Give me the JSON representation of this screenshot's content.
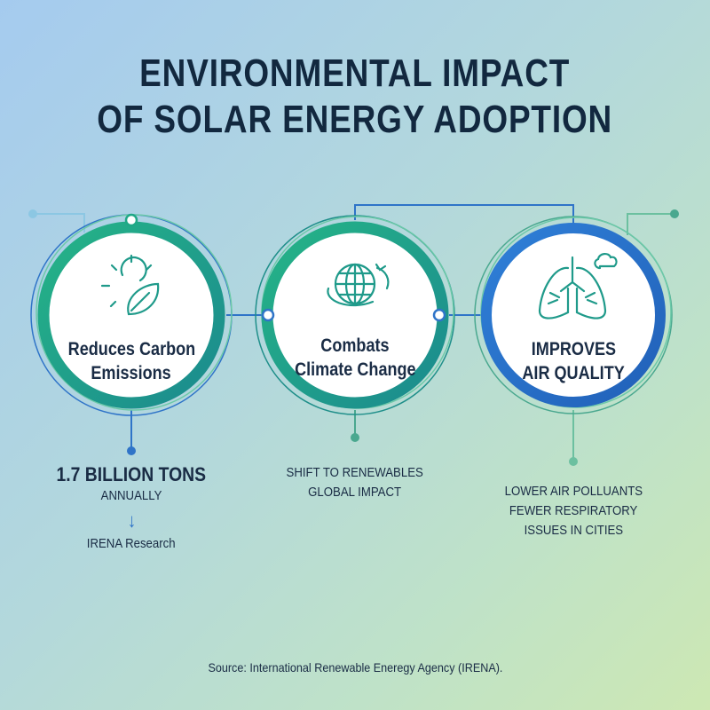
{
  "title": {
    "line1": "ENVIRONMENTAL IMPACT",
    "line2": "OF SOLAR ENERGY ADOPTION"
  },
  "cards": [
    {
      "icon": "sun-leaf-icon",
      "label_line1": "Reduces Carbon",
      "label_line2": "Emissions",
      "stat": "1.7 BILLION TONS",
      "detail": "ANNUALLY",
      "arrow": "↓",
      "note": "IRENA Research",
      "ring_color": "#1fa887"
    },
    {
      "icon": "globe-arrow-icon",
      "label_line1": "Combats",
      "label_line2": "Climate Change",
      "detail_line1": "SHIFT TO RENEWABLES",
      "detail_line2": "GLOBAL IMPACT",
      "ring_color": "#1fa887"
    },
    {
      "icon": "lungs-cloud-icon",
      "label_line1": "IMPROVES",
      "label_line2": "AIR QUALITY",
      "detail_line1": "LOWER AIR POLLUANTS",
      "detail_line2": "FEWER RESPIRATORY",
      "detail_line3": "ISSUES IN CITIES",
      "ring_color": "#2a6fcc"
    }
  ],
  "source": "Source: International Renewable Eneregy Agency (IRENA).",
  "colors": {
    "navy": "#12283f",
    "green": "#1fa887",
    "teal": "#1f8f8a",
    "blue": "#2a6fcc"
  }
}
